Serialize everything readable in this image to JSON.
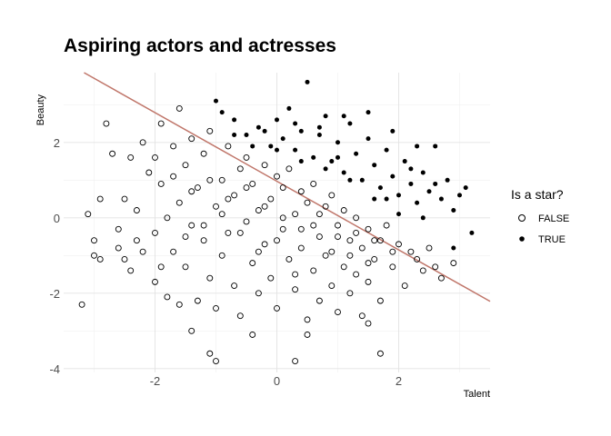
{
  "chart_data": {
    "type": "scatter",
    "title": "Aspiring actors and actresses",
    "xlabel": "Talent",
    "ylabel": "Beauty",
    "xlim": [
      -3.5,
      3.5
    ],
    "ylim": [
      -4.1,
      3.85
    ],
    "x_ticks": [
      -2,
      0,
      2
    ],
    "y_ticks": [
      -4,
      -2,
      0,
      2
    ],
    "grid": true,
    "legend": {
      "title": "Is a star?",
      "position": "right",
      "entries": [
        {
          "label": "FALSE",
          "marker": "open-circle"
        },
        {
          "label": "TRUE",
          "marker": "filled-circle"
        }
      ]
    },
    "series": [
      {
        "name": "FALSE",
        "marker": "open-circle",
        "points": [
          [
            -3.2,
            -2.3
          ],
          [
            -3.1,
            0.1
          ],
          [
            -3.0,
            -0.6
          ],
          [
            -3.0,
            -1.0
          ],
          [
            -2.9,
            0.5
          ],
          [
            -2.8,
            2.5
          ],
          [
            -2.7,
            1.7
          ],
          [
            -2.6,
            -0.3
          ],
          [
            -2.5,
            0.5
          ],
          [
            -2.5,
            -1.1
          ],
          [
            -2.4,
            -1.4
          ],
          [
            -2.4,
            1.6
          ],
          [
            -2.3,
            0.2
          ],
          [
            -2.2,
            -0.9
          ],
          [
            -2.2,
            2.0
          ],
          [
            -2.1,
            1.2
          ],
          [
            -2.0,
            -0.4
          ],
          [
            -2.0,
            -1.7
          ],
          [
            -1.9,
            0.9
          ],
          [
            -1.9,
            2.5
          ],
          [
            -1.8,
            -2.1
          ],
          [
            -1.8,
            0.0
          ],
          [
            -1.7,
            1.9
          ],
          [
            -1.7,
            -0.9
          ],
          [
            -1.6,
            -2.3
          ],
          [
            -1.6,
            0.4
          ],
          [
            -1.5,
            1.4
          ],
          [
            -1.5,
            -1.3
          ],
          [
            -1.4,
            2.1
          ],
          [
            -1.4,
            -0.2
          ],
          [
            -1.3,
            -2.2
          ],
          [
            -1.3,
            0.8
          ],
          [
            -1.2,
            -0.6
          ],
          [
            -1.2,
            1.7
          ],
          [
            -1.1,
            -1.6
          ],
          [
            -1.1,
            2.3
          ],
          [
            -1.0,
            0.3
          ],
          [
            -1.0,
            -2.4
          ],
          [
            -0.9,
            1.0
          ],
          [
            -0.9,
            -1.0
          ],
          [
            -0.8,
            1.9
          ],
          [
            -0.8,
            -0.4
          ],
          [
            -0.7,
            -1.8
          ],
          [
            -0.7,
            0.6
          ],
          [
            -0.6,
            1.3
          ],
          [
            -0.6,
            -2.6
          ],
          [
            -0.5,
            -0.1
          ],
          [
            -0.5,
            1.6
          ],
          [
            -0.4,
            -1.2
          ],
          [
            -0.4,
            0.9
          ],
          [
            -0.3,
            -2.0
          ],
          [
            -0.3,
            0.2
          ],
          [
            -0.2,
            1.4
          ],
          [
            -0.2,
            -0.7
          ],
          [
            -0.1,
            -1.6
          ],
          [
            -0.1,
            0.5
          ],
          [
            0.0,
            1.1
          ],
          [
            0.0,
            -2.4
          ],
          [
            0.1,
            -0.3
          ],
          [
            0.1,
            0.8
          ],
          [
            0.2,
            -1.1
          ],
          [
            0.2,
            1.3
          ],
          [
            0.3,
            -1.9
          ],
          [
            0.3,
            0.1
          ],
          [
            0.4,
            0.7
          ],
          [
            0.4,
            -0.8
          ],
          [
            0.5,
            -2.7
          ],
          [
            0.5,
            0.4
          ],
          [
            0.6,
            -1.4
          ],
          [
            0.6,
            0.9
          ],
          [
            0.7,
            -0.5
          ],
          [
            0.7,
            -2.2
          ],
          [
            0.8,
            0.3
          ],
          [
            0.8,
            -1.0
          ],
          [
            0.9,
            0.6
          ],
          [
            0.9,
            -1.8
          ],
          [
            1.0,
            -0.2
          ],
          [
            1.0,
            -2.5
          ],
          [
            1.1,
            0.2
          ],
          [
            1.1,
            -1.3
          ],
          [
            1.2,
            -0.6
          ],
          [
            1.2,
            -2.0
          ],
          [
            1.3,
            0.0
          ],
          [
            1.3,
            -1.5
          ],
          [
            1.4,
            -0.8
          ],
          [
            1.4,
            -2.6
          ],
          [
            1.5,
            -0.3
          ],
          [
            1.5,
            -1.7
          ],
          [
            1.6,
            -1.1
          ],
          [
            1.7,
            -0.6
          ],
          [
            1.7,
            -2.2
          ],
          [
            1.8,
            -0.2
          ],
          [
            1.9,
            -1.3
          ],
          [
            2.0,
            -0.7
          ],
          [
            2.1,
            -1.8
          ],
          [
            2.2,
            -0.9
          ],
          [
            2.4,
            -1.4
          ],
          [
            2.5,
            -0.8
          ],
          [
            2.7,
            -1.6
          ],
          [
            2.9,
            -1.2
          ],
          [
            -1.4,
            -3.0
          ],
          [
            -1.1,
            -3.6
          ],
          [
            -1.0,
            -3.8
          ],
          [
            -0.4,
            -3.1
          ],
          [
            0.3,
            -3.8
          ],
          [
            0.5,
            -3.1
          ],
          [
            1.7,
            -3.6
          ],
          [
            1.5,
            -2.8
          ],
          [
            -1.6,
            2.9
          ],
          [
            -2.9,
            -1.1
          ],
          [
            -2.6,
            -0.8
          ],
          [
            -2.3,
            -0.6
          ],
          [
            -1.9,
            -1.3
          ],
          [
            -1.5,
            -0.5
          ],
          [
            -1.2,
            -0.2
          ],
          [
            -0.9,
            0.1
          ],
          [
            -0.6,
            -0.4
          ],
          [
            -0.3,
            -0.9
          ],
          [
            0.0,
            -0.6
          ],
          [
            0.3,
            -1.5
          ],
          [
            0.6,
            -0.2
          ],
          [
            0.9,
            -0.9
          ],
          [
            1.2,
            -1.0
          ],
          [
            1.5,
            -1.2
          ],
          [
            -2.0,
            1.6
          ],
          [
            -1.7,
            1.1
          ],
          [
            -1.4,
            0.7
          ],
          [
            -1.1,
            1.0
          ],
          [
            -0.8,
            0.5
          ],
          [
            -0.5,
            0.8
          ],
          [
            -0.2,
            0.3
          ],
          [
            0.1,
            0.0
          ],
          [
            0.4,
            -0.3
          ],
          [
            0.7,
            0.1
          ],
          [
            1.0,
            -0.5
          ],
          [
            1.3,
            -0.4
          ],
          [
            1.6,
            -0.6
          ],
          [
            1.9,
            -0.9
          ],
          [
            2.3,
            -1.1
          ],
          [
            2.6,
            -1.3
          ]
        ]
      },
      {
        "name": "TRUE",
        "marker": "filled-circle",
        "points": [
          [
            -1.0,
            3.1
          ],
          [
            -0.9,
            2.8
          ],
          [
            -0.7,
            2.6
          ],
          [
            -0.5,
            2.2
          ],
          [
            -0.3,
            2.4
          ],
          [
            -0.1,
            1.9
          ],
          [
            0.0,
            2.6
          ],
          [
            0.1,
            2.1
          ],
          [
            0.2,
            2.9
          ],
          [
            0.3,
            1.8
          ],
          [
            0.4,
            2.3
          ],
          [
            0.5,
            3.6
          ],
          [
            0.6,
            1.6
          ],
          [
            0.7,
            2.2
          ],
          [
            0.8,
            2.7
          ],
          [
            0.9,
            1.5
          ],
          [
            1.0,
            2.0
          ],
          [
            1.1,
            1.2
          ],
          [
            1.2,
            2.5
          ],
          [
            1.3,
            1.7
          ],
          [
            1.4,
            1.0
          ],
          [
            1.5,
            2.1
          ],
          [
            1.6,
            1.4
          ],
          [
            1.7,
            0.8
          ],
          [
            1.8,
            1.8
          ],
          [
            1.9,
            1.1
          ],
          [
            2.0,
            0.6
          ],
          [
            2.1,
            1.5
          ],
          [
            2.2,
            0.9
          ],
          [
            2.3,
            0.4
          ],
          [
            2.4,
            1.2
          ],
          [
            2.5,
            0.7
          ],
          [
            2.6,
            1.9
          ],
          [
            2.7,
            0.5
          ],
          [
            2.8,
            1.0
          ],
          [
            2.9,
            0.2
          ],
          [
            3.0,
            0.6
          ],
          [
            3.1,
            0.8
          ],
          [
            3.2,
            -0.4
          ],
          [
            2.9,
            -0.8
          ],
          [
            2.4,
            0.0
          ],
          [
            2.0,
            0.1
          ],
          [
            1.6,
            0.5
          ],
          [
            1.2,
            1.0
          ],
          [
            0.8,
            1.3
          ],
          [
            0.4,
            1.5
          ],
          [
            0.0,
            1.8
          ],
          [
            -0.4,
            1.9
          ],
          [
            -0.7,
            2.2
          ],
          [
            1.1,
            2.7
          ],
          [
            0.7,
            2.4
          ],
          [
            2.3,
            1.9
          ],
          [
            1.9,
            2.3
          ],
          [
            1.5,
            2.8
          ],
          [
            2.6,
            0.9
          ],
          [
            1.0,
            1.6
          ],
          [
            0.3,
            2.5
          ],
          [
            -0.2,
            2.3
          ],
          [
            1.8,
            0.5
          ],
          [
            2.2,
            1.3
          ]
        ]
      }
    ],
    "reference_line": {
      "label": "",
      "slope": -0.91,
      "intercept": 0.97,
      "color": "#c0766a"
    }
  }
}
